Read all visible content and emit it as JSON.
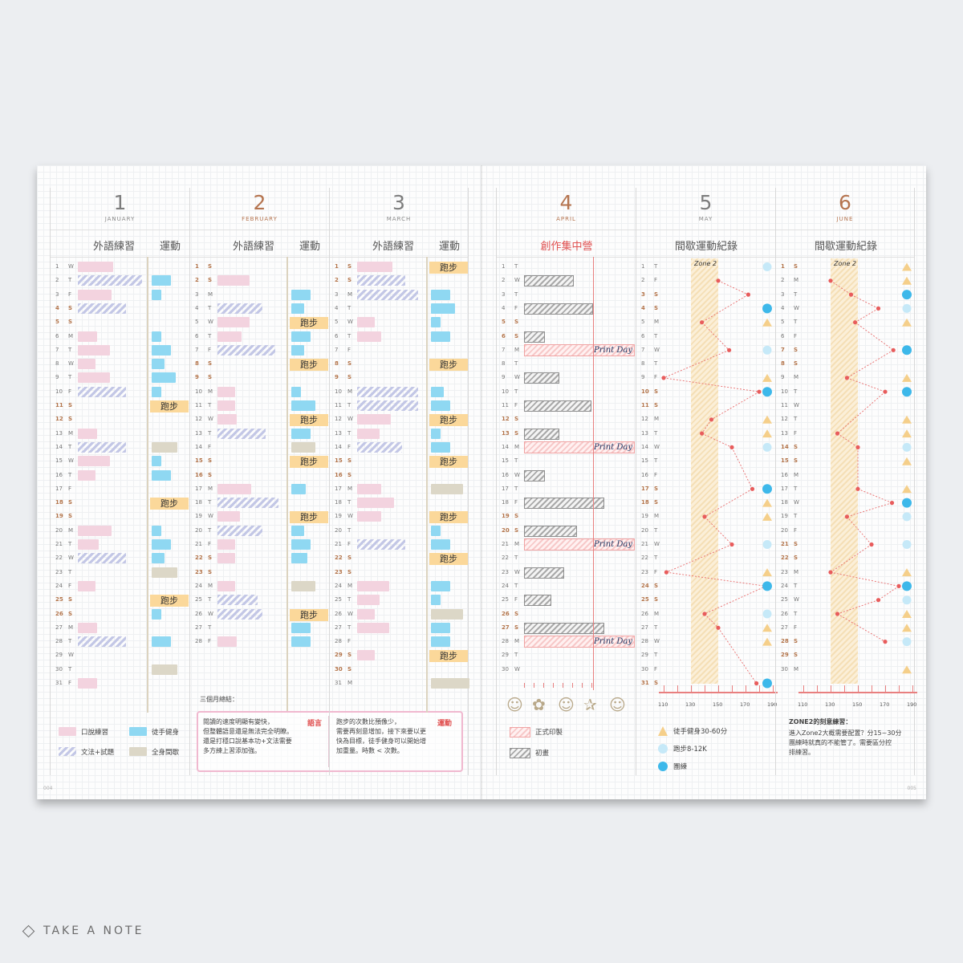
{
  "brand": "TAKE A NOTE",
  "page_numbers": {
    "left": "004",
    "right": "005"
  },
  "months": [
    {
      "num": "1",
      "name": "JANUARY",
      "col1": "外語練習",
      "col2": "運動"
    },
    {
      "num": "2",
      "name": "FEBRUARY",
      "col1": "外語練習",
      "col2": "運動"
    },
    {
      "num": "3",
      "name": "MARCH",
      "col1": "外語練習",
      "col2": "運動"
    },
    {
      "num": "4",
      "name": "APRIL",
      "col1": "創作集中營"
    },
    {
      "num": "5",
      "name": "MAY",
      "col1": "間歇運動紀錄"
    },
    {
      "num": "6",
      "name": "JUNE",
      "col1": "間歇運動紀錄"
    }
  ],
  "tag_text": "跑步",
  "print_day": "Print Day",
  "zone_label": "Zone 2",
  "days": {
    "jan": [
      "W",
      "T",
      "F",
      "S",
      "S",
      "M",
      "T",
      "W",
      "T",
      "F",
      "S",
      "S",
      "M",
      "T",
      "W",
      "T",
      "F",
      "S",
      "S",
      "M",
      "T",
      "W",
      "T",
      "F",
      "S",
      "S",
      "M",
      "T",
      "W",
      "T",
      "F"
    ],
    "feb": [
      "S",
      "S",
      "M",
      "T",
      "W",
      "T",
      "F",
      "S",
      "S",
      "M",
      "T",
      "W",
      "T",
      "F",
      "S",
      "S",
      "M",
      "T",
      "W",
      "T",
      "F",
      "S",
      "S",
      "M",
      "T",
      "W",
      "T",
      "F"
    ],
    "mar": [
      "S",
      "S",
      "M",
      "T",
      "W",
      "T",
      "F",
      "S",
      "S",
      "M",
      "T",
      "W",
      "T",
      "F",
      "S",
      "S",
      "M",
      "T",
      "W",
      "T",
      "F",
      "S",
      "S",
      "M",
      "T",
      "W",
      "T",
      "F",
      "S",
      "S",
      "M"
    ],
    "apr": [
      "T",
      "W",
      "T",
      "F",
      "S",
      "S",
      "M",
      "T",
      "W",
      "T",
      "F",
      "S",
      "S",
      "M",
      "T",
      "W",
      "T",
      "F",
      "S",
      "S",
      "M",
      "T",
      "W",
      "T",
      "F",
      "S",
      "S",
      "M",
      "T",
      "W"
    ],
    "may": [
      "T",
      "F",
      "S",
      "S",
      "M",
      "T",
      "W",
      "T",
      "F",
      "S",
      "S",
      "M",
      "T",
      "W",
      "T",
      "F",
      "S",
      "S",
      "M",
      "T",
      "W",
      "T",
      "F",
      "S",
      "S",
      "M",
      "T",
      "W",
      "T",
      "F",
      "S"
    ],
    "jun": [
      "S",
      "M",
      "T",
      "W",
      "T",
      "F",
      "S",
      "S",
      "M",
      "T",
      "W",
      "T",
      "F",
      "S",
      "S",
      "M",
      "T",
      "W",
      "T",
      "F",
      "S",
      "S",
      "M",
      "T",
      "W",
      "T",
      "F",
      "S",
      "S",
      "M"
    ]
  },
  "legend_left": {
    "speaking": "口說練習",
    "grammar": "文法+試題",
    "strength": "徒手健身",
    "intermittent": "全身間歇"
  },
  "summary": {
    "title": "三個月總結：",
    "lang_label": "語言",
    "lang_text": [
      "閱讀的速度明顯有變快，",
      "但整體語意還是無法完全明瞭。",
      "還是打穩口說基本功+文法需要",
      "多方練上習添加強。"
    ],
    "sport_label": "運動",
    "sport_text": [
      "跑步的次數比預像少，",
      "需要再刻意增加，接下來要以更",
      "快為目標，徒手健身可以開始增",
      "加重量。時數 < 次數。"
    ]
  },
  "april_legend": {
    "print": "正式印製",
    "draft": "初畫"
  },
  "april_icons": [
    "smile-icon",
    "flower-icon",
    "smile-icon",
    "star-icon",
    "smile-icon"
  ],
  "may_legend": {
    "triangle": "徒手健身30-60分",
    "light": "跑步8-12K",
    "dark": "團練"
  },
  "june_note": {
    "title": "ZONE2的刻意練習：",
    "text": [
      "進入Zone2大概需要配置？分15~30分",
      "團練時就真的不能管了。需要區分控",
      "排練習。"
    ]
  },
  "hr_axis": [
    "110",
    "130",
    "150",
    "170",
    "190"
  ],
  "chart_data": [
    {
      "type": "line",
      "title": "",
      "xlabel": "",
      "ylabel": "",
      "xlim": [
        110,
        190
      ],
      "zone": [
        130,
        150
      ],
      "days": [
        1,
        2,
        3,
        4,
        5,
        6,
        7,
        8,
        9,
        10,
        11,
        12,
        13,
        14,
        15,
        16,
        17,
        18,
        19,
        20,
        21,
        22,
        23,
        24,
        25,
        26,
        27,
        28,
        29,
        30,
        31
      ],
      "values": [
        null,
        150,
        172,
        null,
        138,
        null,
        158,
        null,
        110,
        180,
        null,
        145,
        138,
        160,
        null,
        null,
        175,
        null,
        140,
        null,
        160,
        null,
        112,
        185,
        null,
        140,
        150,
        null,
        null,
        null,
        178
      ],
      "markers": [
        "light",
        null,
        null,
        "dark",
        "triangle",
        null,
        "light",
        null,
        "triangle",
        "dark",
        null,
        "triangle",
        "triangle",
        "light",
        null,
        null,
        "dark",
        "triangle",
        "triangle",
        null,
        "light",
        null,
        "triangle",
        "dark",
        null,
        "light",
        "triangle",
        "triangle",
        null,
        null,
        "dark"
      ]
    },
    {
      "type": "line",
      "title": "",
      "xlabel": "",
      "ylabel": "",
      "xlim": [
        110,
        190
      ],
      "zone": [
        130,
        150
      ],
      "days": [
        1,
        2,
        3,
        4,
        5,
        6,
        7,
        8,
        9,
        10,
        11,
        12,
        13,
        14,
        15,
        16,
        17,
        18,
        19,
        20,
        21,
        22,
        23,
        24,
        25,
        26,
        27,
        28,
        29,
        30
      ],
      "values": [
        null,
        130,
        145,
        165,
        148,
        null,
        176,
        null,
        142,
        170,
        null,
        null,
        135,
        150,
        null,
        null,
        150,
        175,
        142,
        null,
        160,
        null,
        130,
        180,
        165,
        135,
        null,
        170,
        null,
        null
      ],
      "markers": [
        "triangle",
        "triangle",
        "dark",
        "light",
        "triangle",
        null,
        "dark",
        null,
        "triangle",
        "dark",
        null,
        "triangle",
        "triangle",
        "light",
        "triangle",
        null,
        "triangle",
        "dark",
        "light",
        null,
        "light",
        null,
        "triangle",
        "dark",
        "light",
        "triangle",
        "triangle",
        "light",
        null,
        "triangle"
      ]
    }
  ]
}
